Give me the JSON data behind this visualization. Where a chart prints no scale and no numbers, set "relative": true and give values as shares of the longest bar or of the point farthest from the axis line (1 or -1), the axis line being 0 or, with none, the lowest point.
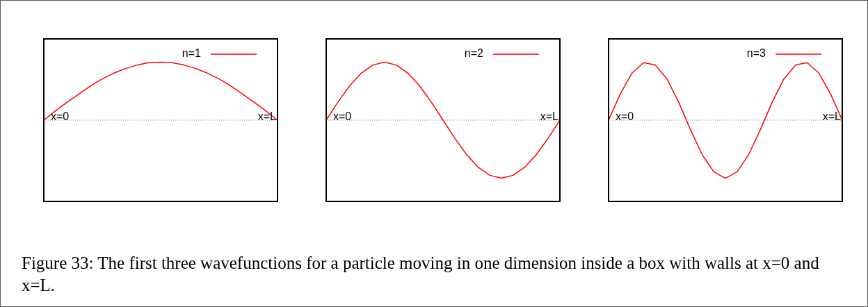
{
  "chart_data": [
    {
      "type": "line",
      "relative": true,
      "categories": [
        null,
        null,
        null,
        null,
        null,
        null,
        null,
        null,
        null,
        null,
        null,
        null,
        null,
        null,
        null,
        null,
        null,
        null,
        null,
        null,
        null
      ],
      "legend": "top right",
      "annotations": [
        "x=0",
        "x=L"
      ],
      "ref_lines": [
        {
          "axis": "y",
          "value": 0,
          "line_style": "dotted",
          "color": "#888888"
        }
      ],
      "series": [
        {
          "name": "n=1",
          "color": "#ff0000",
          "values": [
            0,
            0.16,
            0.31,
            0.45,
            0.59,
            0.71,
            0.81,
            0.89,
            0.95,
            0.99,
            1,
            0.99,
            0.95,
            0.89,
            0.81,
            0.71,
            0.59,
            0.45,
            0.31,
            0.16,
            0
          ]
        }
      ]
    },
    {
      "type": "line",
      "relative": true,
      "categories": [
        null,
        null,
        null,
        null,
        null,
        null,
        null,
        null,
        null,
        null,
        null,
        null,
        null,
        null,
        null,
        null,
        null,
        null,
        null,
        null,
        null
      ],
      "legend": "top right",
      "annotations": [
        "x=0",
        "x=L"
      ],
      "ref_lines": [
        {
          "axis": "y",
          "value": 0,
          "line_style": "dotted",
          "color": "#888888"
        }
      ],
      "series": [
        {
          "name": "n=2",
          "color": "#ff0000",
          "values": [
            0,
            0.31,
            0.59,
            0.81,
            0.95,
            1,
            0.95,
            0.81,
            0.59,
            0.31,
            0,
            -0.31,
            -0.59,
            -0.81,
            -0.95,
            -1,
            -0.95,
            -0.81,
            -0.59,
            -0.31,
            0
          ]
        }
      ]
    },
    {
      "type": "line",
      "relative": true,
      "categories": [
        null,
        null,
        null,
        null,
        null,
        null,
        null,
        null,
        null,
        null,
        null,
        null,
        null,
        null,
        null,
        null,
        null,
        null,
        null,
        null,
        null
      ],
      "legend": "top right",
      "annotations": [
        "x=0",
        "x=L"
      ],
      "ref_lines": [
        {
          "axis": "y",
          "value": 0,
          "line_style": "dotted",
          "color": "#888888"
        }
      ],
      "series": [
        {
          "name": "n=3",
          "color": "#ff0000",
          "values": [
            0,
            0.45,
            0.81,
            0.99,
            0.95,
            0.71,
            0.31,
            -0.16,
            -0.59,
            -0.89,
            -1,
            -0.89,
            -0.59,
            -0.16,
            0.31,
            0.71,
            0.95,
            0.99,
            0.81,
            0.45,
            0
          ]
        }
      ]
    },
    {
      "type": "other",
      "annotations": [
        "Figure 33: The first three wavefunctions for a particle moving in one dimension inside a box with walls at x=0 and x=L."
      ]
    }
  ]
}
